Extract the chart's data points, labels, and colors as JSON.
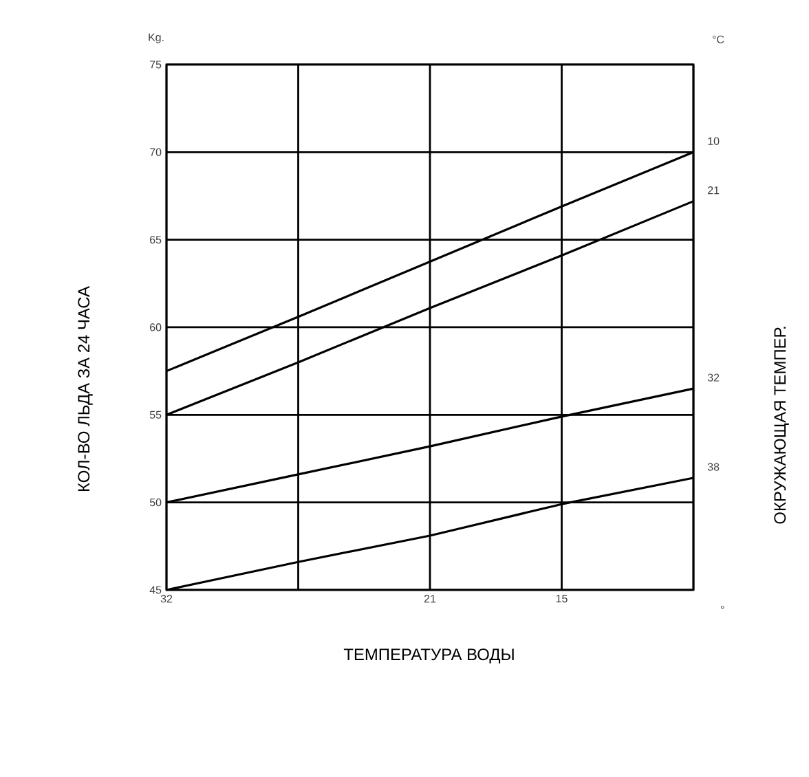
{
  "chart_data": {
    "type": "line",
    "xlabel": "ТЕМПЕРАТУРА ВОДЫ",
    "ylabel": "КОЛ-ВО ЛЬДА ЗА 24 ЧАСА",
    "y2label": "ОКРУЖАЮЩАЯ ТЕМПЕР.",
    "annotations": [
      "Kg.",
      "°C",
      "°"
    ],
    "categories": [
      "32",
      null,
      "21",
      "15",
      null
    ],
    "ylim": [
      45,
      75
    ],
    "yticks": [
      45,
      50,
      55,
      60,
      65,
      70,
      75
    ],
    "grid": true,
    "legend": false,
    "marker": "none",
    "line_style": "solid",
    "series": [
      {
        "name": "10",
        "color": "#000000",
        "values": [
          57.5,
          60.6,
          63.75,
          66.9,
          70
        ]
      },
      {
        "name": "21",
        "color": "#000000",
        "values": [
          55,
          58.0,
          61.1,
          64.1,
          67.2
        ]
      },
      {
        "name": "32",
        "color": "#000000",
        "values": [
          50,
          51.6,
          53.2,
          54.9,
          56.5
        ]
      },
      {
        "name": "38",
        "color": "#000000",
        "values": [
          45,
          46.6,
          48.1,
          49.9,
          51.4
        ]
      }
    ]
  }
}
